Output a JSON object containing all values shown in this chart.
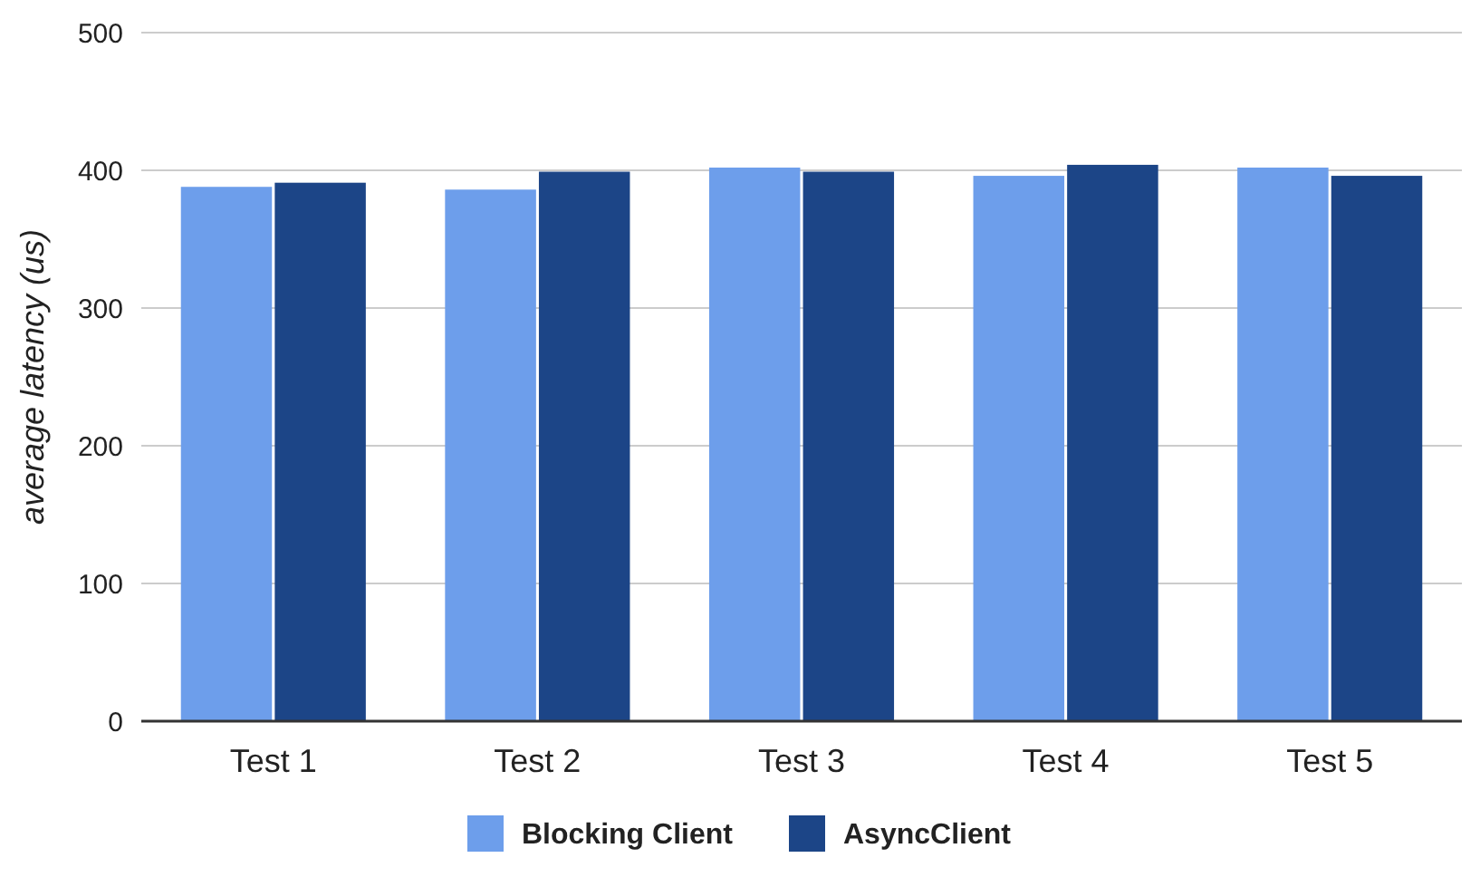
{
  "chart_data": {
    "type": "bar",
    "ylabel": "average latency (us)",
    "categories": [
      "Test 1",
      "Test 2",
      "Test 3",
      "Test 4",
      "Test 5"
    ],
    "series": [
      {
        "name": "Blocking Client",
        "color": "#6d9eeb",
        "values": [
          388,
          386,
          402,
          396,
          402
        ]
      },
      {
        "name": "AsyncClient",
        "color": "#1c4587",
        "values": [
          391,
          399,
          399,
          404,
          396
        ]
      }
    ],
    "ylim": [
      0,
      500
    ],
    "yticks": [
      0,
      100,
      200,
      300,
      400,
      500
    ],
    "grid": "y",
    "legend": "bottom"
  }
}
